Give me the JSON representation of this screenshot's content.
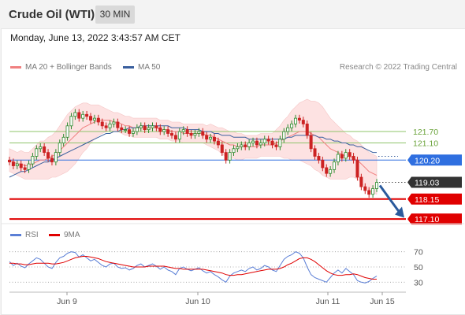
{
  "header": {
    "title": "Crude Oil (WTI)",
    "timeframe": "30 MIN"
  },
  "datetime": "Monday, June 13, 2022 3:43:57 AM CET",
  "legend": {
    "item1": "MA 20 + Bollinger Bands",
    "item2": "MA 50",
    "credit": "Research © 2022 Trading Central"
  },
  "rsi_legend": {
    "item1": "RSI",
    "item2": "9MA"
  },
  "colors": {
    "ma20": "#f08080",
    "bollinger_fill": "#fde2e2",
    "ma50": "#3a5f9e",
    "bull": "#2e8b2e",
    "bear": "#cc2222",
    "resistance": "#8fc46a",
    "pivot": "#2f6fe0",
    "support": "#e00000",
    "arrow": "#2a5a9c",
    "rsi": "#5b7fd6",
    "rsi_ma": "#e00000"
  },
  "chart_data": [
    {
      "type": "line",
      "title": "Crude Oil (WTI) 30 MIN",
      "x_tick_labels": [
        "Jun 9",
        "Jun 10",
        "Jun 11",
        "Jun 15"
      ],
      "ylim": [
        116.9,
        124.6
      ],
      "levels": [
        {
          "label": "121.70",
          "value": 121.7,
          "kind": "resistance"
        },
        {
          "label": "121.10",
          "value": 121.1,
          "kind": "resistance"
        },
        {
          "label": "120.20",
          "value": 120.2,
          "kind": "pivot"
        },
        {
          "label": "119.03",
          "value": 119.03,
          "kind": "last"
        },
        {
          "label": "118.15",
          "value": 118.15,
          "kind": "support"
        },
        {
          "label": "117.10",
          "value": 117.1,
          "kind": "support"
        }
      ],
      "closes": [
        120.1,
        119.9,
        120.0,
        119.8,
        119.7,
        120.0,
        120.4,
        120.8,
        120.9,
        120.6,
        120.3,
        120.1,
        120.6,
        121.1,
        121.4,
        122.0,
        122.5,
        122.7,
        122.4,
        122.6,
        122.5,
        122.3,
        122.4,
        122.2,
        122.0,
        121.9,
        122.1,
        122.2,
        121.9,
        121.8,
        121.8,
        121.6,
        121.7,
        121.9,
        122.0,
        121.8,
        121.9,
        122.0,
        121.9,
        121.7,
        121.8,
        121.6,
        121.5,
        121.3,
        121.7,
        121.8,
        121.6,
        121.5,
        121.6,
        121.7,
        121.5,
        121.3,
        121.4,
        121.2,
        121.0,
        120.6,
        120.2,
        120.6,
        120.8,
        120.9,
        121.0,
        120.9,
        121.1,
        121.2,
        121.0,
        121.1,
        121.3,
        121.2,
        121.0,
        120.9,
        121.3,
        121.7,
        121.9,
        122.1,
        122.4,
        122.3,
        122.1,
        121.5,
        120.8,
        120.4,
        120.2,
        119.8,
        119.5,
        119.7,
        120.1,
        120.5,
        120.3,
        120.6,
        120.4,
        120.2,
        119.3,
        118.8,
        118.6,
        118.4,
        118.7,
        119.03
      ],
      "ma20": [
        120.2,
        120.1,
        120.0,
        120.0,
        119.9,
        119.9,
        120.0,
        120.1,
        120.2,
        120.2,
        120.3,
        120.4,
        120.5,
        120.7,
        120.9,
        121.1,
        121.3,
        121.5,
        121.7,
        121.9,
        122.0,
        122.1,
        122.2,
        122.3,
        122.3,
        122.3,
        122.3,
        122.2,
        122.2,
        122.1,
        122.0,
        122.0,
        121.9,
        121.9,
        121.9,
        121.9,
        121.9,
        121.9,
        121.9,
        121.8,
        121.8,
        121.8,
        121.7,
        121.7,
        121.7,
        121.6,
        121.6,
        121.6,
        121.6,
        121.6,
        121.6,
        121.5,
        121.5,
        121.4,
        121.3,
        121.2,
        121.1,
        121.0,
        121.0,
        120.9,
        120.9,
        120.9,
        120.9,
        120.9,
        120.9,
        121.0,
        121.0,
        121.0,
        121.0,
        121.1,
        121.2,
        121.3,
        121.4,
        121.5,
        121.6,
        121.7,
        121.7,
        121.7,
        121.6,
        121.5,
        121.4,
        121.2,
        121.0,
        120.8,
        120.7,
        120.6,
        120.5,
        120.4,
        120.4,
        120.3,
        120.2,
        120.0,
        119.8,
        119.6,
        119.5,
        119.4
      ],
      "ma50": [
        119.3,
        119.4,
        119.5,
        119.6,
        119.6,
        119.7,
        119.8,
        119.9,
        120.0,
        120.1,
        120.1,
        120.2,
        120.3,
        120.4,
        120.5,
        120.6,
        120.7,
        120.8,
        120.9,
        121.0,
        121.1,
        121.2,
        121.3,
        121.4,
        121.5,
        121.6,
        121.6,
        121.7,
        121.7,
        121.8,
        121.8,
        121.9,
        121.9,
        121.9,
        122.0,
        122.0,
        122.0,
        122.0,
        122.0,
        122.0,
        122.0,
        122.0,
        121.9,
        121.9,
        121.9,
        121.9,
        121.8,
        121.8,
        121.8,
        121.8,
        121.7,
        121.7,
        121.7,
        121.6,
        121.6,
        121.5,
        121.5,
        121.5,
        121.4,
        121.4,
        121.4,
        121.4,
        121.3,
        121.3,
        121.3,
        121.3,
        121.3,
        121.3,
        121.3,
        121.3,
        121.3,
        121.3,
        121.4,
        121.4,
        121.5,
        121.5,
        121.5,
        121.5,
        121.5,
        121.5,
        121.4,
        121.4,
        121.3,
        121.3,
        121.2,
        121.2,
        121.1,
        121.1,
        121.0,
        121.0,
        120.9,
        120.9,
        120.8,
        120.7,
        120.6,
        120.6
      ],
      "bb_width": [
        0.6,
        0.6,
        0.6,
        0.7,
        0.7,
        0.7,
        0.8,
        0.9,
        1.0,
        1.0,
        1.1,
        1.1,
        1.2,
        1.3,
        1.4,
        1.5,
        1.5,
        1.5,
        1.4,
        1.3,
        1.2,
        1.0,
        0.9,
        0.8,
        0.7,
        0.6,
        0.5,
        0.5,
        0.5,
        0.5,
        0.5,
        0.5,
        0.5,
        0.5,
        0.5,
        0.5,
        0.5,
        0.5,
        0.5,
        0.5,
        0.5,
        0.5,
        0.5,
        0.5,
        0.5,
        0.5,
        0.5,
        0.5,
        0.5,
        0.5,
        0.5,
        0.5,
        0.6,
        0.6,
        0.6,
        0.7,
        0.7,
        0.7,
        0.7,
        0.7,
        0.7,
        0.6,
        0.6,
        0.6,
        0.6,
        0.6,
        0.6,
        0.6,
        0.6,
        0.7,
        0.8,
        1.0,
        1.1,
        1.3,
        1.4,
        1.5,
        1.6,
        1.7,
        1.7,
        1.8,
        1.8,
        1.8,
        1.7,
        1.6,
        1.5,
        1.4,
        1.3,
        1.2,
        1.1,
        1.0,
        1.0,
        1.0,
        1.0,
        1.0,
        1.0,
        1.0
      ]
    },
    {
      "type": "line",
      "title": "RSI",
      "ylim": [
        20,
        80
      ],
      "y_ticks": [
        70,
        50,
        30
      ],
      "x_tick_labels": [
        "Jun 9",
        "Jun 10",
        "Jun 11",
        "Jun 15"
      ],
      "series": [
        {
          "name": "RSI",
          "values": [
            57,
            52,
            55,
            51,
            49,
            54,
            58,
            62,
            60,
            55,
            50,
            48,
            56,
            62,
            64,
            68,
            70,
            69,
            63,
            66,
            62,
            58,
            60,
            56,
            52,
            50,
            54,
            55,
            50,
            48,
            49,
            46,
            48,
            52,
            54,
            50,
            52,
            54,
            51,
            47,
            50,
            46,
            44,
            40,
            48,
            50,
            47,
            45,
            47,
            49,
            45,
            42,
            44,
            40,
            37,
            33,
            30,
            38,
            42,
            44,
            46,
            44,
            48,
            50,
            46,
            48,
            52,
            50,
            46,
            44,
            52,
            60,
            64,
            66,
            70,
            68,
            62,
            50,
            40,
            36,
            34,
            32,
            30,
            36,
            42,
            46,
            42,
            48,
            44,
            40,
            32,
            30,
            29,
            31,
            35,
            38
          ]
        },
        {
          "name": "9MA",
          "values": [
            55,
            55,
            54,
            54,
            53,
            53,
            54,
            55,
            55,
            55,
            55,
            54,
            54,
            55,
            56,
            58,
            60,
            62,
            63,
            64,
            64,
            63,
            62,
            61,
            59,
            57,
            56,
            55,
            54,
            53,
            52,
            51,
            50,
            50,
            50,
            50,
            51,
            51,
            51,
            51,
            51,
            50,
            49,
            48,
            48,
            47,
            47,
            47,
            47,
            47,
            47,
            46,
            45,
            44,
            43,
            42,
            40,
            39,
            39,
            40,
            40,
            41,
            42,
            43,
            44,
            45,
            46,
            47,
            47,
            47,
            48,
            50,
            53,
            55,
            58,
            61,
            62,
            62,
            60,
            57,
            53,
            49,
            45,
            42,
            40,
            39,
            39,
            40,
            40,
            41,
            40,
            38,
            36,
            35,
            34,
            34
          ]
        }
      ]
    }
  ]
}
